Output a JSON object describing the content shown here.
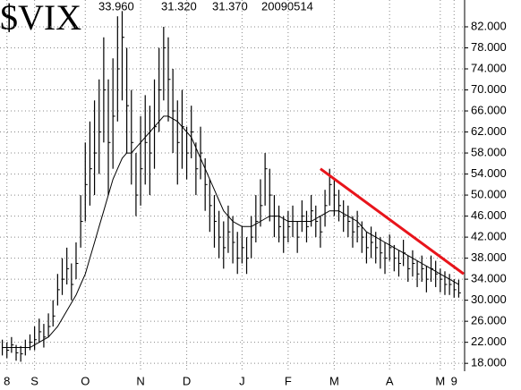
{
  "header": {
    "symbol": "$VIX",
    "values": [
      "33.960",
      "31.320",
      "31.370",
      "20090514"
    ]
  },
  "chart_data": {
    "type": "ohlc",
    "categories": [
      null,
      "8",
      null,
      null,
      null,
      null,
      null,
      "S",
      null,
      null,
      null,
      null,
      null,
      null,
      null,
      null,
      null,
      null,
      "O",
      null,
      null,
      null,
      null,
      null,
      null,
      null,
      null,
      null,
      null,
      null,
      "N",
      null,
      null,
      null,
      null,
      null,
      null,
      null,
      null,
      null,
      "D",
      null,
      null,
      null,
      null,
      null,
      null,
      null,
      null,
      null,
      null,
      null,
      "J",
      null,
      null,
      null,
      null,
      null,
      null,
      null,
      null,
      null,
      "F",
      null,
      null,
      null,
      null,
      null,
      null,
      null,
      null,
      null,
      "M",
      null,
      null,
      null,
      null,
      null,
      null,
      null,
      null,
      null,
      null,
      null,
      "A",
      null,
      null,
      null,
      null,
      null,
      null,
      null,
      null,
      null,
      null,
      "M",
      null,
      null,
      "9",
      null
    ],
    "high": [
      22.5,
      22,
      23,
      21.5,
      21.3,
      22.5,
      23.5,
      25,
      26.5,
      25.5,
      27.5,
      30,
      35,
      38,
      40,
      37,
      41,
      50,
      60,
      64,
      68,
      72,
      80,
      72,
      76,
      84,
      85,
      78,
      70,
      58,
      65,
      69,
      67,
      72,
      78,
      82,
      80,
      74,
      68,
      70,
      63,
      67,
      60,
      63,
      57,
      53,
      50,
      47,
      45,
      48,
      46,
      43,
      44,
      42,
      46,
      50,
      53,
      58,
      55,
      50,
      48,
      46,
      47,
      48,
      45,
      49,
      47,
      50,
      48,
      46,
      51,
      55,
      53,
      51,
      49,
      48,
      46,
      47,
      45,
      43,
      44,
      43,
      42,
      41,
      42.5,
      40.5,
      39.5,
      41.5,
      38.5,
      39.5,
      37.5,
      38.5,
      36.5,
      38.5,
      37.5,
      36,
      35.5,
      35,
      34,
      33.9
    ],
    "low": [
      19.5,
      19,
      20,
      18.5,
      18.3,
      19.5,
      20.5,
      20.5,
      22,
      21,
      23,
      25,
      29,
      31,
      33,
      30,
      34,
      40,
      45,
      48,
      50,
      54,
      60,
      50,
      55,
      64,
      68,
      58,
      52,
      46,
      48,
      52,
      50,
      55,
      62,
      68,
      64,
      58,
      52,
      55,
      53,
      57,
      50,
      53,
      47,
      43,
      40,
      38,
      36,
      39,
      37,
      35,
      37,
      35,
      38,
      41,
      44,
      48,
      45,
      42,
      41,
      39,
      41,
      42,
      39,
      43,
      41,
      44,
      42,
      40,
      44,
      48,
      46,
      45,
      43,
      42,
      40,
      41,
      39,
      37,
      38,
      37,
      36,
      35,
      37.5,
      35.5,
      34.5,
      36.5,
      33.5,
      34.5,
      32.5,
      33.5,
      31.5,
      33.5,
      32.5,
      31.5,
      31,
      31,
      30.5,
      30.5
    ],
    "close": [
      21,
      20.5,
      21.5,
      20,
      19.8,
      21,
      22,
      22.5,
      24,
      23,
      25,
      27,
      32,
      34,
      36,
      33,
      37,
      45,
      52,
      55,
      58,
      62,
      70,
      60,
      65,
      74,
      80,
      67,
      60,
      50,
      55,
      60,
      58,
      63,
      70,
      78,
      72,
      66,
      60,
      63,
      58,
      62,
      55,
      58,
      52,
      48,
      45,
      42,
      40,
      43,
      41,
      38,
      40,
      38,
      42,
      45,
      48,
      55,
      50,
      46,
      44,
      42,
      44,
      45,
      42,
      46,
      44,
      47,
      45,
      43,
      48,
      52,
      50,
      48,
      46,
      45,
      43,
      44,
      42,
      40,
      41,
      40,
      39,
      38,
      40,
      38,
      37,
      39,
      36,
      37,
      35,
      36,
      34,
      36,
      35,
      34,
      33,
      33,
      32,
      31.4
    ],
    "moving_average": [
      21,
      21,
      21,
      21,
      21,
      21,
      21,
      21.5,
      22,
      22.5,
      23,
      24,
      25,
      26.5,
      28,
      29.5,
      31,
      33,
      35,
      38,
      41,
      44,
      47,
      50,
      53,
      55,
      57,
      58,
      58,
      59,
      60,
      61,
      62,
      63,
      64,
      65,
      65,
      64.5,
      64,
      63,
      62,
      61,
      59,
      57,
      55,
      53,
      51,
      49,
      47,
      46,
      45,
      44.5,
      44,
      44,
      44,
      44.5,
      45,
      45.5,
      46,
      46,
      46,
      45.5,
      45,
      45,
      45,
      45,
      45,
      45,
      45.5,
      46,
      46.5,
      47,
      47,
      47,
      46.5,
      46,
      45.5,
      45,
      44,
      43,
      42.5,
      42,
      41.5,
      41,
      40.5,
      40,
      39.5,
      39,
      38.5,
      38,
      37.5,
      37,
      36.5,
      36,
      35.5,
      35,
      34.5,
      34,
      33.5,
      33
    ],
    "bar_color": "#000000",
    "average_color": "#000000",
    "trendline": {
      "values": [
        55,
        35
      ],
      "color": "#e8141b"
    },
    "ylim": [
      16.5,
      87.1
    ],
    "yticks": [
      {
        "value": 18,
        "label": "18.000"
      },
      {
        "value": 22,
        "label": "22.000"
      },
      {
        "value": 26,
        "label": "26.000"
      },
      {
        "value": 30,
        "label": "30.000"
      },
      {
        "value": 34,
        "label": "34.000"
      },
      {
        "value": 38,
        "label": "38.000"
      },
      {
        "value": 42,
        "label": "42.000"
      },
      {
        "value": 46,
        "label": "46.000"
      },
      {
        "value": 50,
        "label": "50.000"
      },
      {
        "value": 54,
        "label": "54.000"
      },
      {
        "value": 58,
        "label": "58.000"
      },
      {
        "value": 62,
        "label": "62.000"
      },
      {
        "value": 66,
        "label": "66.000"
      },
      {
        "value": 70,
        "label": "70.000"
      },
      {
        "value": 74,
        "label": "74.000"
      },
      {
        "value": 78,
        "label": "78.000"
      },
      {
        "value": 82,
        "label": "82.000"
      }
    ],
    "grid": true
  }
}
